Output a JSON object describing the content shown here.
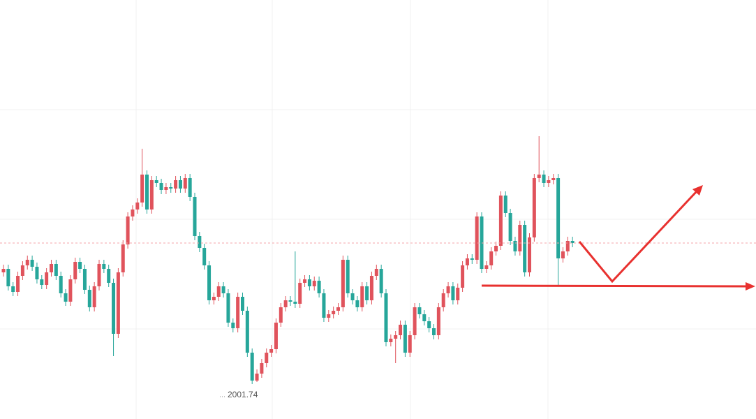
{
  "chart_data": {
    "type": "candlestick",
    "ylim": [
      1996.74,
      2056.74
    ],
    "up_color": "#e0535c",
    "down_color": "#26a69a",
    "low_mark": 2001.74,
    "open": [
      2017.74,
      2018.24,
      2015.74,
      2014.94,
      2017.24,
      2018.74,
      2019.54,
      2018.54,
      2016.74,
      2015.94,
      2017.74,
      2018.94,
      2017.24,
      2014.74,
      2013.54,
      2016.74,
      2019.24,
      2018.24,
      2015.24,
      2012.74,
      2015.74,
      2018.94,
      2018.24,
      2016.24,
      2008.94,
      2017.74,
      2021.74,
      2025.74,
      2026.74,
      2027.74,
      2031.74,
      2026.74,
      2030.94,
      2030.54,
      2029.54,
      2029.94,
      2029.74,
      2030.94,
      2029.74,
      2031.24,
      2028.54,
      2022.94,
      2021.24,
      2018.74,
      2013.74,
      2014.24,
      2015.74,
      2014.74,
      2010.54,
      2009.74,
      2014.24,
      2012.24,
      2006.24,
      2002.24,
      2003.24,
      2004.74,
      2006.24,
      2006.74,
      2010.54,
      2012.74,
      2013.74,
      2013.54,
      2013.24,
      2016.24,
      2016.74,
      2015.74,
      2016.54,
      2014.74,
      2011.24,
      2011.74,
      2012.24,
      2012.74,
      2019.54,
      2014.74,
      2013.74,
      2012.74,
      2015.74,
      2013.74,
      2017.24,
      2018.24,
      2014.74,
      2007.74,
      2008.24,
      2008.74,
      2010.24,
      2006.24,
      2008.74,
      2012.74,
      2011.74,
      2010.74,
      2009.74,
      2008.74,
      2012.74,
      2014.74,
      2015.74,
      2013.74,
      2015.54,
      2018.74,
      2019.74,
      2019.54,
      2025.74,
      2018.24,
      2018.74,
      2020.74,
      2021.54,
      2028.74,
      2026.24,
      2022.24,
      2020.74,
      2024.54,
      2017.74,
      2022.74,
      2031.24,
      2031.74,
      2030.54,
      2030.94,
      2031.24,
      2019.74,
      2020.74,
      2022.24
    ],
    "high": [
      2018.84,
      2018.84,
      2016.34,
      2017.84,
      2019.34,
      2020.14,
      2020.14,
      2019.14,
      2017.34,
      2018.34,
      2019.54,
      2019.54,
      2017.84,
      2015.34,
      2017.34,
      2019.84,
      2019.84,
      2018.84,
      2015.84,
      2016.34,
      2019.54,
      2019.54,
      2018.84,
      2016.84,
      2018.34,
      2022.34,
      2026.34,
      2027.34,
      2028.34,
      2035.44,
      2032.34,
      2031.54,
      2031.54,
      2031.14,
      2030.54,
      2030.54,
      2031.54,
      2031.54,
      2031.84,
      2031.84,
      2029.14,
      2023.54,
      2021.84,
      2019.34,
      2014.84,
      2016.34,
      2016.34,
      2015.34,
      2011.14,
      2014.84,
      2014.84,
      2012.84,
      2006.84,
      2003.84,
      2005.34,
      2006.84,
      2007.34,
      2011.14,
      2013.34,
      2014.34,
      2014.34,
      2020.74,
      2016.84,
      2017.34,
      2017.34,
      2017.14,
      2017.14,
      2015.34,
      2012.34,
      2012.84,
      2013.34,
      2020.14,
      2020.14,
      2015.34,
      2014.34,
      2016.34,
      2016.34,
      2017.84,
      2018.84,
      2018.84,
      2015.34,
      2008.84,
      2009.34,
      2010.84,
      2010.84,
      2009.34,
      2013.34,
      2013.34,
      2012.34,
      2011.34,
      2010.34,
      2013.34,
      2015.34,
      2016.34,
      2016.34,
      2016.14,
      2019.34,
      2020.34,
      2020.34,
      2026.34,
      2026.34,
      2019.34,
      2021.34,
      2022.14,
      2029.34,
      2029.34,
      2026.84,
      2022.84,
      2025.14,
      2025.14,
      2023.34,
      2031.84,
      2037.24,
      2032.34,
      2031.54,
      2031.84,
      2031.84,
      2021.34,
      2022.84,
      2022.84
    ],
    "low": [
      2017.14,
      2015.14,
      2014.34,
      2014.34,
      2016.64,
      2018.14,
      2017.94,
      2016.14,
      2015.34,
      2015.34,
      2017.14,
      2016.64,
      2014.14,
      2012.94,
      2012.94,
      2016.14,
      2017.64,
      2014.64,
      2012.14,
      2012.14,
      2015.14,
      2017.64,
      2015.64,
      2005.74,
      2008.34,
      2017.14,
      2021.14,
      2025.14,
      2026.14,
      2027.14,
      2026.14,
      2026.14,
      2029.94,
      2028.94,
      2028.94,
      2029.14,
      2029.14,
      2029.14,
      2029.14,
      2027.94,
      2022.34,
      2020.64,
      2018.14,
      2013.14,
      2013.14,
      2013.64,
      2014.14,
      2009.94,
      2009.14,
      2009.14,
      2011.64,
      2005.64,
      2001.74,
      2002.04,
      2002.64,
      2004.14,
      2005.64,
      2006.14,
      2009.94,
      2012.14,
      2012.94,
      2012.64,
      2012.64,
      2015.64,
      2015.14,
      2015.14,
      2014.14,
      2010.64,
      2010.64,
      2011.14,
      2011.64,
      2012.14,
      2014.14,
      2013.14,
      2012.14,
      2012.14,
      2013.14,
      2013.14,
      2016.64,
      2014.14,
      2007.14,
      2007.14,
      2004.74,
      2008.14,
      2005.64,
      2005.64,
      2008.14,
      2011.14,
      2010.14,
      2009.14,
      2008.14,
      2008.14,
      2012.14,
      2014.14,
      2013.14,
      2013.14,
      2014.94,
      2018.14,
      2018.94,
      2018.94,
      2017.64,
      2017.64,
      2018.14,
      2020.14,
      2020.94,
      2025.64,
      2021.64,
      2020.14,
      2020.14,
      2017.14,
      2017.14,
      2022.14,
      2030.64,
      2029.94,
      2029.94,
      2030.34,
      2015.74,
      2019.14,
      2020.14,
      2021.34
    ],
    "close": [
      2018.24,
      2015.74,
      2014.94,
      2017.24,
      2018.74,
      2019.54,
      2018.54,
      2016.74,
      2015.94,
      2017.74,
      2018.94,
      2017.24,
      2014.74,
      2013.54,
      2016.74,
      2019.24,
      2018.24,
      2015.24,
      2012.74,
      2015.74,
      2018.94,
      2018.24,
      2016.24,
      2008.94,
      2017.74,
      2021.74,
      2025.74,
      2026.74,
      2027.74,
      2031.74,
      2026.74,
      2030.94,
      2030.54,
      2029.54,
      2029.94,
      2029.74,
      2030.94,
      2029.74,
      2031.24,
      2028.54,
      2022.94,
      2021.24,
      2018.74,
      2013.74,
      2014.24,
      2015.74,
      2014.74,
      2010.54,
      2009.74,
      2014.24,
      2012.24,
      2006.24,
      2002.24,
      2003.24,
      2004.74,
      2006.24,
      2006.74,
      2010.54,
      2012.74,
      2013.74,
      2013.54,
      2013.24,
      2016.24,
      2016.74,
      2015.74,
      2016.54,
      2014.74,
      2011.24,
      2011.74,
      2012.24,
      2012.74,
      2019.54,
      2014.74,
      2013.74,
      2012.74,
      2015.74,
      2013.74,
      2017.24,
      2018.24,
      2014.74,
      2007.74,
      2008.24,
      2008.74,
      2010.24,
      2006.24,
      2008.74,
      2012.74,
      2011.74,
      2010.74,
      2009.74,
      2008.74,
      2012.74,
      2014.74,
      2015.74,
      2013.74,
      2015.54,
      2018.74,
      2019.74,
      2019.54,
      2025.74,
      2018.24,
      2018.74,
      2020.74,
      2021.54,
      2028.74,
      2026.24,
      2022.24,
      2020.74,
      2024.54,
      2017.74,
      2022.74,
      2031.24,
      2031.74,
      2030.54,
      2030.94,
      2031.24,
      2019.74,
      2020.74,
      2022.24,
      2021.94
    ]
  }
}
